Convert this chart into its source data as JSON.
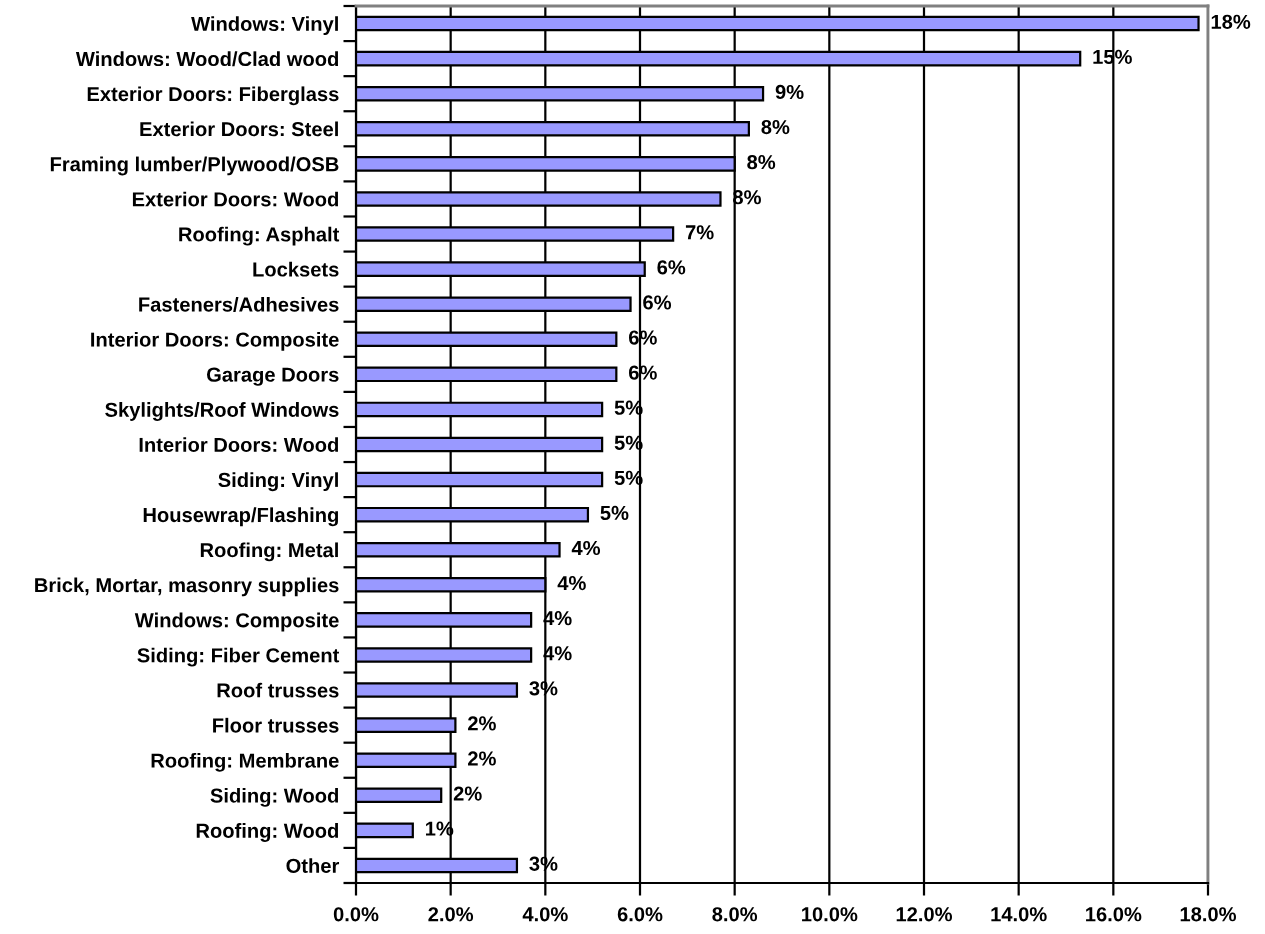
{
  "chart_data": {
    "type": "bar",
    "orientation": "horizontal",
    "categories": [
      "Windows: Vinyl",
      "Windows: Wood/Clad wood",
      "Exterior Doors: Fiberglass",
      "Exterior Doors: Steel",
      "Framing lumber/Plywood/OSB",
      "Exterior Doors: Wood",
      "Roofing: Asphalt",
      "Locksets",
      "Fasteners/Adhesives",
      "Interior Doors: Composite",
      "Garage Doors",
      "Skylights/Roof Windows",
      "Interior Doors: Wood",
      "Siding: Vinyl",
      "Housewrap/Flashing",
      "Roofing: Metal",
      "Brick, Mortar, masonry supplies",
      "Windows: Composite",
      "Siding: Fiber Cement",
      "Roof trusses",
      "Floor trusses",
      "Roofing: Membrane",
      "Siding: Wood",
      "Roofing: Wood",
      "Other"
    ],
    "values": [
      17.8,
      15.3,
      8.6,
      8.3,
      8.0,
      7.7,
      6.7,
      6.1,
      5.8,
      5.5,
      5.5,
      5.2,
      5.2,
      5.2,
      4.9,
      4.3,
      4.0,
      3.7,
      3.7,
      3.4,
      2.1,
      2.1,
      1.8,
      1.2,
      3.4
    ],
    "value_labels": [
      "18%",
      "15%",
      "9%",
      "8%",
      "8%",
      "8%",
      "7%",
      "6%",
      "6%",
      "6%",
      "6%",
      "5%",
      "5%",
      "5%",
      "5%",
      "4%",
      "4%",
      "4%",
      "4%",
      "3%",
      "2%",
      "2%",
      "2%",
      "1%",
      "3%"
    ],
    "color": "#9999ff",
    "xlim": [
      0,
      18
    ],
    "xticks": [
      {
        "value": 0,
        "label": "0.0%"
      },
      {
        "value": 2,
        "label": "2.0%"
      },
      {
        "value": 4,
        "label": "4.0%"
      },
      {
        "value": 6,
        "label": "6.0%"
      },
      {
        "value": 8,
        "label": "8.0%"
      },
      {
        "value": 10,
        "label": "10.0%"
      },
      {
        "value": 12,
        "label": "12.0%"
      },
      {
        "value": 14,
        "label": "14.0%"
      },
      {
        "value": 16,
        "label": "16.0%"
      },
      {
        "value": 18,
        "label": "18.0%"
      }
    ],
    "grid": "x"
  }
}
